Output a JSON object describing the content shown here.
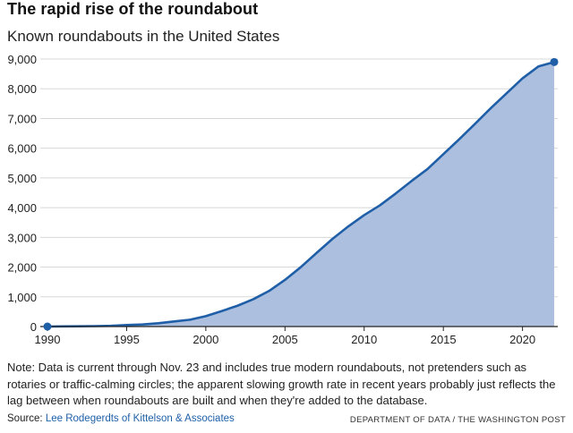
{
  "chart_data": {
    "type": "area",
    "title": "The rapid rise of the roundabout",
    "subtitle": "Known roundabouts in the United States",
    "xlabel": "",
    "ylabel": "",
    "xlim": [
      1990,
      2022
    ],
    "ylim": [
      0,
      9000
    ],
    "x_ticks": [
      "1990",
      "1995",
      "2000",
      "2005",
      "2010",
      "2015",
      "2020"
    ],
    "y_ticks": [
      "0",
      "1,000",
      "2,000",
      "3,000",
      "4,000",
      "5,000",
      "6,000",
      "7,000",
      "8,000",
      "9,000"
    ],
    "series": [
      {
        "name": "Known roundabouts",
        "x": [
          1990,
          1991,
          1992,
          1993,
          1994,
          1995,
          1996,
          1997,
          1998,
          1999,
          2000,
          2001,
          2002,
          2003,
          2004,
          2005,
          2006,
          2007,
          2008,
          2009,
          2010,
          2011,
          2012,
          2013,
          2014,
          2015,
          2016,
          2017,
          2018,
          2019,
          2020,
          2021,
          2022
        ],
        "values": [
          0,
          5,
          10,
          15,
          25,
          50,
          70,
          110,
          170,
          230,
          350,
          520,
          700,
          920,
          1200,
          1570,
          2000,
          2480,
          2950,
          3370,
          3750,
          4080,
          4480,
          4900,
          5300,
          5800,
          6300,
          6820,
          7350,
          7850,
          8350,
          8750,
          8900
        ]
      }
    ],
    "colors": {
      "line": "#1f5fa8",
      "fill": "#adbfde",
      "grid": "#d8d8d8",
      "axis": "#222222"
    },
    "grid": true
  },
  "note": "Note: Data is current through Nov. 23 and includes true modern roundabouts, not pretenders such as rotaries or traffic-calming circles; the apparent slowing growth rate in recent years probably just reflects the lag between when roundabouts are built and when they're added to the database.",
  "source": {
    "prefix": "Source: ",
    "link_text": "Lee Rodegerdts of Kittelson & Associates"
  },
  "credit": "DEPARTMENT OF DATA / THE WASHINGTON POST"
}
